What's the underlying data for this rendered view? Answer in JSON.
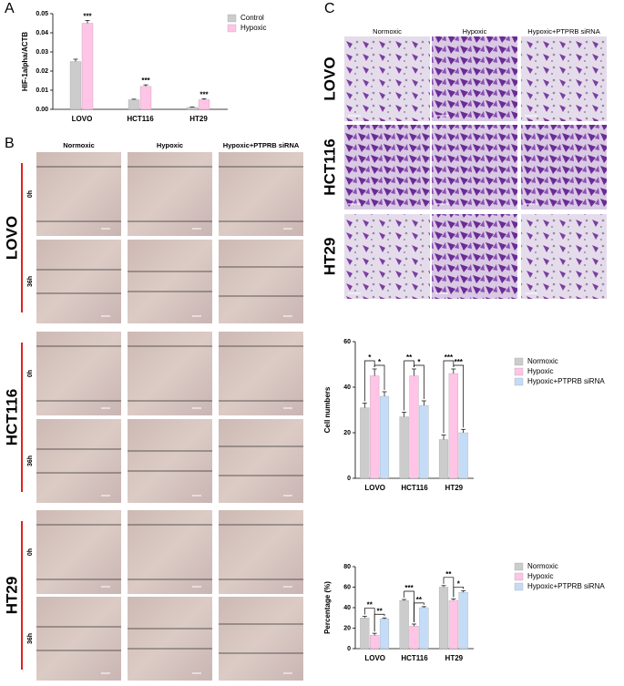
{
  "panel_labels": [
    "A",
    "B",
    "C"
  ],
  "wound": {
    "columns": [
      "Normoxic",
      "Hypoxic",
      "Hypoxic+PTPRB siRNA"
    ],
    "rows": [
      {
        "label": "LOVO",
        "times": [
          "0h",
          "36h"
        ]
      },
      {
        "label": "HCT116",
        "times": [
          "0h",
          "36h"
        ]
      },
      {
        "label": "HT29",
        "times": [
          "0h",
          "36h"
        ]
      }
    ]
  },
  "transwell": {
    "columns": [
      "Normoxic",
      "Hypoxic",
      "Hypoxic+PTPRB siRNA"
    ],
    "rows": [
      "LOVO",
      "HCT116",
      "HT29"
    ]
  },
  "chart_data": [
    {
      "type": "bar",
      "ylabel": "HIF-1alpha/ACTB",
      "categories": [
        "LOVO",
        "HCT116",
        "HT29"
      ],
      "series": [
        {
          "name": "Control",
          "color": "#cccccc",
          "values": [
            0.025,
            0.005,
            0.001
          ],
          "errors": [
            0.0012,
            0.0003,
            0.0002
          ]
        },
        {
          "name": "Hypoxic",
          "color": "#ffc4e6",
          "values": [
            0.045,
            0.012,
            0.005
          ],
          "errors": [
            0.0015,
            0.0008,
            0.0005
          ]
        }
      ],
      "annotations": [
        "***",
        "***",
        "***"
      ],
      "ylim": [
        0,
        0.05
      ],
      "yticks": [
        {
          "value": 0,
          "label": "0.00"
        },
        0.01,
        0.02,
        0.03,
        0.04,
        0.05
      ]
    },
    {
      "type": "bar",
      "ylabel": "Cell numbers",
      "categories": [
        "LOVO",
        "HCT116",
        "HT29"
      ],
      "series": [
        {
          "name": "Normoxic",
          "color": "#cccccc",
          "values": [
            31,
            27,
            17
          ],
          "errors": [
            2,
            2,
            2
          ]
        },
        {
          "name": "Hypoxic",
          "color": "#ffc4e6",
          "values": [
            45,
            45,
            46
          ],
          "errors": [
            3,
            3,
            2
          ]
        },
        {
          "name": "Hypoxic+PTPRB siRNA",
          "color": "#c4dcf7",
          "values": [
            36,
            32,
            20
          ],
          "errors": [
            2,
            2,
            1.5
          ]
        }
      ],
      "annotations": [
        [
          "*",
          "*"
        ],
        [
          "**",
          "*"
        ],
        [
          "***",
          "***"
        ]
      ],
      "ylim": [
        0,
        60
      ],
      "yticks": [
        0,
        20,
        40,
        60
      ]
    },
    {
      "type": "bar",
      "ylabel": "Percentage (%)",
      "categories": [
        "LOVO",
        "HCT116",
        "HT29"
      ],
      "series": [
        {
          "name": "Normoxic",
          "color": "#cccccc",
          "values": [
            30,
            47,
            60
          ],
          "errors": [
            1.5,
            1,
            1.5
          ]
        },
        {
          "name": "Hypoxic",
          "color": "#ffc4e6",
          "values": [
            13,
            22,
            47
          ],
          "errors": [
            2,
            2,
            1.5
          ]
        },
        {
          "name": "Hypoxic+PTPRB siRNA",
          "color": "#c4dcf7",
          "values": [
            29,
            40,
            55
          ],
          "errors": [
            1,
            1,
            1.5
          ]
        }
      ],
      "annotations": [
        [
          "**",
          "**"
        ],
        [
          "***",
          "**"
        ],
        [
          "**",
          "*"
        ]
      ],
      "ylim": [
        0,
        80
      ],
      "yticks": [
        0,
        20,
        40,
        60,
        80
      ]
    }
  ]
}
